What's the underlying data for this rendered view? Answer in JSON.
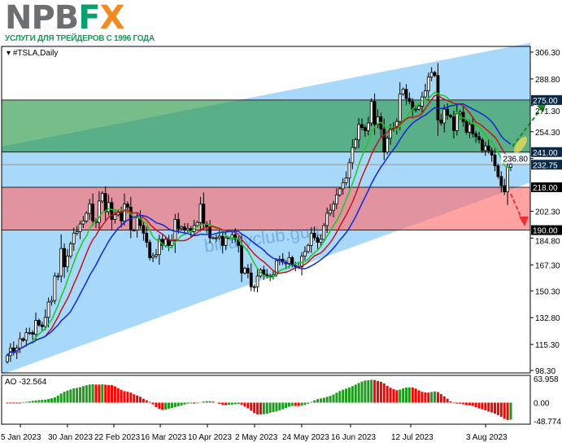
{
  "header": {
    "logo_text": "NPBFX",
    "logo_part1": "NPB",
    "logo_part2": "F",
    "logo_part3": "X",
    "tagline": "УСЛУГИ ДЛЯ ТРЕЙДЕРОВ С 1996 ГОДА"
  },
  "chart_data": {
    "type": "candlestick",
    "symbol_label": "#TSLA,Daily",
    "watermark": "binaryclub.guru",
    "ylim": [
      98.3,
      306.3
    ],
    "y_ticks": [
      "306.30",
      "288.80",
      "271.30",
      "254.30",
      "236.80",
      "202.30",
      "184.80",
      "167.30",
      "150.30",
      "132.80",
      "115.30",
      "98.30"
    ],
    "x_ticks": [
      "5 Jan 2023",
      "30 Jan 2023",
      "22 Feb 2023",
      "16 Mar 2023",
      "10 Apr 2023",
      "2 May 2023",
      "24 May 2023",
      "16 Jun 2023",
      "12 Jul 2023",
      "3 Aug 2023"
    ],
    "levels": [
      {
        "value": "275.00",
        "color": "#0a2a4a"
      },
      {
        "value": "241.00",
        "color": "#0a2a4a"
      },
      {
        "value": "232.75",
        "color": "#0a2a4a"
      },
      {
        "value": "218.00",
        "color": "#000000"
      },
      {
        "value": "190.00",
        "color": "#000000"
      }
    ],
    "zones": [
      {
        "from": 241,
        "to": 275,
        "color": "#2e9a4a"
      },
      {
        "from": 190,
        "to": 218,
        "color": "#ff7070"
      }
    ],
    "current_price": 232.75,
    "channel_color": "#a8d8fa",
    "closes": [
      108,
      113,
      110,
      113,
      119,
      118,
      123,
      123,
      122,
      131,
      128,
      127,
      133,
      143,
      144,
      160,
      160,
      178,
      166,
      173,
      181,
      188,
      189,
      194,
      196,
      201,
      207,
      196,
      195,
      209,
      214,
      202,
      208,
      197,
      200,
      202,
      196,
      207,
      205,
      190,
      190,
      198,
      193,
      188,
      182,
      172,
      173,
      174,
      184,
      180,
      184,
      180,
      183,
      197,
      191,
      192,
      190,
      191,
      189,
      193,
      195,
      207,
      194,
      192,
      185,
      185,
      185,
      186,
      180,
      185,
      185,
      187,
      184,
      180,
      162,
      165,
      162,
      153,
      153,
      160,
      164,
      161,
      160,
      160,
      161,
      170,
      171,
      169,
      168,
      172,
      167,
      166,
      166,
      173,
      176,
      180,
      188,
      185,
      182,
      184,
      193,
      201,
      203,
      207,
      213,
      217,
      221,
      224,
      234,
      244,
      249,
      259,
      257,
      255,
      260,
      274,
      259,
      264,
      256,
      241,
      250,
      256,
      257,
      261,
      279,
      282,
      276,
      274,
      269,
      269,
      271,
      277,
      281,
      290,
      293,
      291,
      262,
      260,
      269,
      265,
      264,
      255,
      266,
      267,
      261,
      254,
      259,
      253,
      251,
      249,
      242,
      245,
      242,
      239,
      232,
      225,
      219,
      215,
      231,
      233
    ],
    "ma_colors": {
      "fast": "#1ec81e",
      "medium": "#c01818",
      "slow": "#1028d8"
    },
    "ao": {
      "label": "AO -32.564",
      "ylim": [
        -48.774,
        63.958
      ],
      "ticks": [
        "63.958",
        "0.00",
        "-48.774"
      ],
      "up_color": "#1e9a1e",
      "down_color": "#ff0000"
    }
  }
}
